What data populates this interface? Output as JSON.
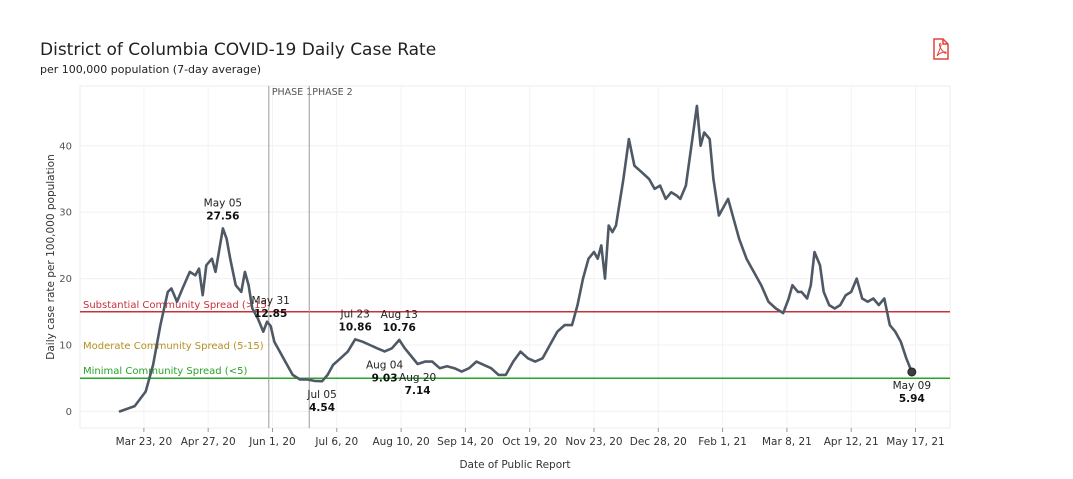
{
  "header": {
    "title": "District of Columbia COVID-19 Daily Case Rate",
    "subtitle": "per 100,000 population (7-day average)"
  },
  "icons": {
    "export": "pdf-icon"
  },
  "colors": {
    "line": "#4f5965",
    "substantial": "#c8303a",
    "moderate": "#b59422",
    "minimal": "#2aa32a",
    "phase": "#9a9a9a",
    "pdf": "#e0453a"
  },
  "chart_data": {
    "type": "line",
    "title": "District of Columbia COVID-19 Daily Case Rate",
    "subtitle": "per 100,000 population (7-day average)",
    "xlabel": "Date of Public Report",
    "ylabel": "Daily case rate per 100,000 population",
    "xlim": [
      0,
      430
    ],
    "ylim": [
      -2.5,
      49
    ],
    "y_ticks": [
      0,
      10,
      20,
      30,
      40
    ],
    "x_ticks": [
      {
        "day": 13,
        "label": "Mar 23, 20"
      },
      {
        "day": 48,
        "label": "Apr 27, 20"
      },
      {
        "day": 83,
        "label": "Jun 1, 20"
      },
      {
        "day": 118,
        "label": "Jul 6, 20"
      },
      {
        "day": 153,
        "label": "Aug 10, 20"
      },
      {
        "day": 188,
        "label": "Sep 14, 20"
      },
      {
        "day": 223,
        "label": "Oct 19, 20"
      },
      {
        "day": 258,
        "label": "Nov 23, 20"
      },
      {
        "day": 293,
        "label": "Dec 28, 20"
      },
      {
        "day": 328,
        "label": "Feb 1, 21"
      },
      {
        "day": 363,
        "label": "Mar 8, 21"
      },
      {
        "day": 398,
        "label": "Apr 12, 21"
      },
      {
        "day": 433,
        "label": "May 17, 21"
      }
    ],
    "x_day0": "Mar 10, 20",
    "series": [
      {
        "name": "Daily case rate (7-day average)",
        "points": [
          [
            0,
            0
          ],
          [
            8,
            0.8
          ],
          [
            14,
            3
          ],
          [
            18,
            7
          ],
          [
            22,
            13
          ],
          [
            26,
            18
          ],
          [
            28,
            18.5
          ],
          [
            31,
            16.5
          ],
          [
            34,
            18.5
          ],
          [
            38,
            21
          ],
          [
            41,
            20.5
          ],
          [
            43,
            21.5
          ],
          [
            45,
            17.5
          ],
          [
            47,
            22
          ],
          [
            50,
            23
          ],
          [
            52,
            21
          ],
          [
            56,
            27.56
          ],
          [
            58,
            26
          ],
          [
            60,
            23
          ],
          [
            63,
            19
          ],
          [
            66,
            18
          ],
          [
            68,
            21
          ],
          [
            70,
            19
          ],
          [
            72,
            15.5
          ],
          [
            75,
            14
          ],
          [
            78,
            12
          ],
          [
            80,
            13.5
          ],
          [
            82,
            12.85
          ],
          [
            84,
            10.5
          ],
          [
            87,
            9
          ],
          [
            90,
            7.5
          ],
          [
            94,
            5.5
          ],
          [
            98,
            4.8
          ],
          [
            102,
            4.8
          ],
          [
            106,
            4.6
          ],
          [
            110,
            4.54
          ],
          [
            113,
            5.5
          ],
          [
            116,
            7
          ],
          [
            120,
            8
          ],
          [
            124,
            9
          ],
          [
            128,
            10.86
          ],
          [
            132,
            10.5
          ],
          [
            136,
            10
          ],
          [
            140,
            9.5
          ],
          [
            144,
            9.03
          ],
          [
            148,
            9.5
          ],
          [
            152,
            10.76
          ],
          [
            155,
            9.5
          ],
          [
            158,
            8.5
          ],
          [
            162,
            7.14
          ],
          [
            166,
            7.5
          ],
          [
            170,
            7.5
          ],
          [
            174,
            6.5
          ],
          [
            178,
            6.8
          ],
          [
            182,
            6.5
          ],
          [
            186,
            6
          ],
          [
            190,
            6.5
          ],
          [
            194,
            7.5
          ],
          [
            198,
            7
          ],
          [
            202,
            6.5
          ],
          [
            206,
            5.5
          ],
          [
            210,
            5.5
          ],
          [
            214,
            7.5
          ],
          [
            218,
            9
          ],
          [
            222,
            8
          ],
          [
            226,
            7.5
          ],
          [
            230,
            8
          ],
          [
            234,
            10
          ],
          [
            238,
            12
          ],
          [
            242,
            13
          ],
          [
            246,
            13
          ],
          [
            249,
            16
          ],
          [
            252,
            20
          ],
          [
            255,
            23
          ],
          [
            258,
            24
          ],
          [
            260,
            23
          ],
          [
            262,
            25
          ],
          [
            264,
            20
          ],
          [
            266,
            28
          ],
          [
            268,
            27
          ],
          [
            270,
            28
          ],
          [
            274,
            35
          ],
          [
            277,
            41
          ],
          [
            280,
            37
          ],
          [
            284,
            36
          ],
          [
            288,
            35
          ],
          [
            291,
            33.5
          ],
          [
            294,
            34
          ],
          [
            297,
            32
          ],
          [
            300,
            33
          ],
          [
            303,
            32.5
          ],
          [
            305,
            32
          ],
          [
            308,
            34
          ],
          [
            311,
            40
          ],
          [
            314,
            46
          ],
          [
            316,
            40
          ],
          [
            318,
            42
          ],
          [
            321,
            41
          ],
          [
            323,
            35
          ],
          [
            326,
            29.5
          ],
          [
            329,
            31
          ],
          [
            331,
            32
          ],
          [
            334,
            29
          ],
          [
            337,
            26
          ],
          [
            341,
            23
          ],
          [
            345,
            21
          ],
          [
            349,
            19
          ],
          [
            353,
            16.5
          ],
          [
            357,
            15.5
          ],
          [
            361,
            14.8
          ],
          [
            364,
            17
          ],
          [
            366,
            19
          ],
          [
            369,
            18
          ],
          [
            371,
            18
          ],
          [
            374,
            17
          ],
          [
            376,
            19
          ],
          [
            378,
            24
          ],
          [
            381,
            22
          ],
          [
            383,
            18
          ],
          [
            386,
            16
          ],
          [
            389,
            15.5
          ],
          [
            392,
            16
          ],
          [
            395,
            17.5
          ],
          [
            398,
            18
          ],
          [
            401,
            20
          ],
          [
            404,
            17
          ],
          [
            407,
            16.5
          ],
          [
            410,
            17
          ],
          [
            413,
            16
          ],
          [
            416,
            17
          ],
          [
            419,
            13
          ],
          [
            422,
            12
          ],
          [
            425,
            10.5
          ],
          [
            428,
            8
          ],
          [
            431,
            5.94
          ]
        ]
      }
    ],
    "reference_lines": [
      {
        "y": 15,
        "label": "Substantial Community Spread (>15)",
        "color": "#c8303a"
      },
      {
        "y": 5,
        "label": "Minimal Community Spread (<5)",
        "color": "#2aa32a"
      }
    ],
    "band_labels": [
      {
        "y": 10,
        "label": "Moderate Community Spread (5-15)",
        "color": "#b59422"
      }
    ],
    "phase_lines": [
      {
        "day": 81,
        "label": "PHASE 1"
      },
      {
        "day": 103,
        "label": "PHASE 2"
      }
    ],
    "annotations": [
      {
        "date": "May 05",
        "value": "27.56",
        "day": 56,
        "y": 27.56,
        "position": "above"
      },
      {
        "date": "May 31",
        "value": "12.85",
        "day": 82,
        "y": 12.85,
        "position": "above"
      },
      {
        "date": "Jul 05",
        "value": "4.54",
        "day": 110,
        "y": 4.54,
        "position": "below"
      },
      {
        "date": "Jul 23",
        "value": "10.86",
        "day": 128,
        "y": 10.86,
        "position": "above"
      },
      {
        "date": "Aug 13",
        "value": "10.76",
        "day": 152,
        "y": 10.76,
        "position": "above"
      },
      {
        "date": "Aug 04",
        "value": "9.03",
        "day": 144,
        "y": 9.03,
        "position": "below"
      },
      {
        "date": "Aug 20",
        "value": "7.14",
        "day": 162,
        "y": 7.14,
        "position": "below"
      },
      {
        "date": "May 09",
        "value": "5.94",
        "day": 431,
        "y": 5.94,
        "position": "below"
      }
    ],
    "last_point": {
      "date": "May 09",
      "value": 5.94
    }
  }
}
